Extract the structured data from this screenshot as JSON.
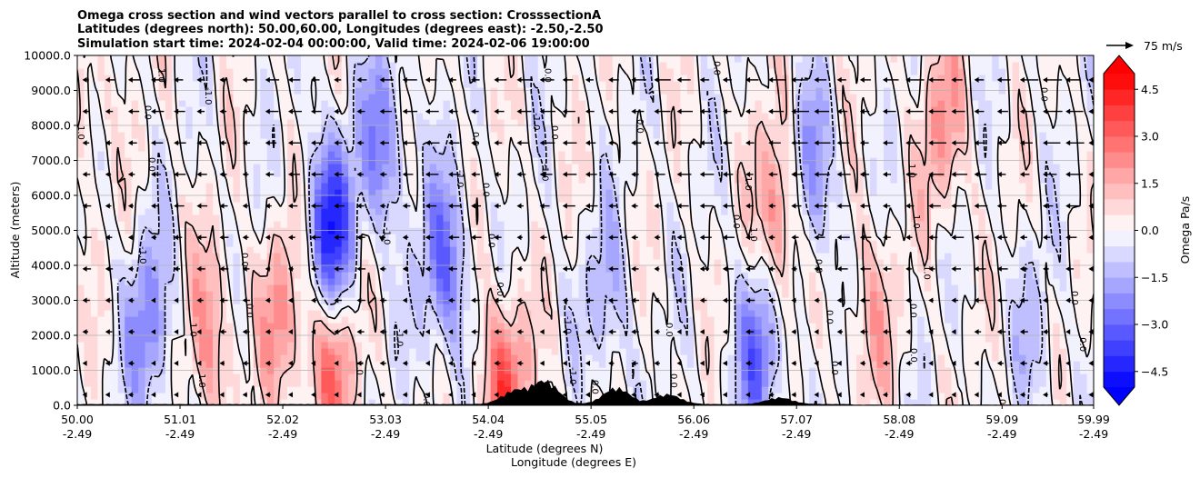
{
  "chart_data": {
    "type": "contour",
    "title_lines": [
      "Omega cross section and wind vectors parallel to cross section: CrosssectionA",
      "Latitudes (degrees north): 50.00,60.00, Longitudes (degrees east): -2.50,-2.50",
      "Simulation start time: 2024-02-04 00:00:00, Valid time: 2024-02-06 19:00:00"
    ],
    "xlabel_lines": [
      "Latitude (degrees N)",
      "Longitude (degrees E)"
    ],
    "ylabel": "Altitude (meters)",
    "ylim": [
      0,
      10000
    ],
    "y_ticks": [
      "0.0",
      "1000.0",
      "2000.0",
      "3000.0",
      "4000.0",
      "5000.0",
      "6000.0",
      "7000.0",
      "8000.0",
      "9000.0",
      "10000.0"
    ],
    "x_ticks": [
      {
        "lat": "50.00",
        "lon": "-2.49"
      },
      {
        "lat": "51.01",
        "lon": "-2.49"
      },
      {
        "lat": "52.02",
        "lon": "-2.49"
      },
      {
        "lat": "53.03",
        "lon": "-2.49"
      },
      {
        "lat": "54.04",
        "lon": "-2.49"
      },
      {
        "lat": "55.05",
        "lon": "-2.49"
      },
      {
        "lat": "56.06",
        "lon": "-2.49"
      },
      {
        "lat": "57.07",
        "lon": "-2.49"
      },
      {
        "lat": "58.08",
        "lon": "-2.49"
      },
      {
        "lat": "59.09",
        "lon": "-2.49"
      },
      {
        "lat": "59.99",
        "lon": "-2.49"
      }
    ],
    "colorbar": {
      "label": "Omega Pa/s",
      "min": -5.0,
      "max": 5.0,
      "step": 0.5,
      "extend": "both",
      "ticks": [
        "-4.5",
        "-3.0",
        "-1.5",
        "0.0",
        "1.5",
        "3.0",
        "4.5"
      ],
      "colormap": "bwr"
    },
    "quiver_key": {
      "value": 75,
      "label": "75 m/s"
    },
    "contour_levels": [
      -1.0,
      0.0,
      1.0
    ],
    "field_features": [
      {
        "lat": 52.5,
        "alt": 5000,
        "omega": -4.5
      },
      {
        "lat": 52.5,
        "alt": 1200,
        "omega": 3.0
      },
      {
        "lat": 53.6,
        "alt": 4000,
        "omega": -3.0
      },
      {
        "lat": 50.7,
        "alt": 2200,
        "omega": -2.5
      },
      {
        "lat": 51.3,
        "alt": 2000,
        "omega": 2.0
      },
      {
        "lat": 52.0,
        "alt": 2500,
        "omega": 2.0
      },
      {
        "lat": 53.0,
        "alt": 7500,
        "omega": -2.5
      },
      {
        "lat": 56.9,
        "alt": 5500,
        "omega": 3.0
      },
      {
        "lat": 57.2,
        "alt": 6500,
        "omega": -2.5
      },
      {
        "lat": 56.7,
        "alt": 1500,
        "omega": -3.0
      },
      {
        "lat": 58.5,
        "alt": 8000,
        "omega": 2.0
      },
      {
        "lat": 59.4,
        "alt": 2000,
        "omega": -1.0
      },
      {
        "lat": 57.8,
        "alt": 2500,
        "omega": 1.5
      },
      {
        "lat": 54.2,
        "alt": 400,
        "omega": 3.5
      },
      {
        "lat": 55.2,
        "alt": 3000,
        "omega": -1.5
      },
      {
        "lat": 50.1,
        "alt": 8500,
        "omega": 1.0
      }
    ],
    "wind": {
      "upper_level_speed_ms": -60,
      "note": "westward vectors aloft, strongest north of 56N"
    },
    "terrain": [
      {
        "lat": 54.3,
        "alt": 400
      },
      {
        "lat": 54.6,
        "alt": 700
      },
      {
        "lat": 55.3,
        "alt": 500
      },
      {
        "lat": 55.8,
        "alt": 300
      },
      {
        "lat": 56.9,
        "alt": 200
      }
    ]
  }
}
